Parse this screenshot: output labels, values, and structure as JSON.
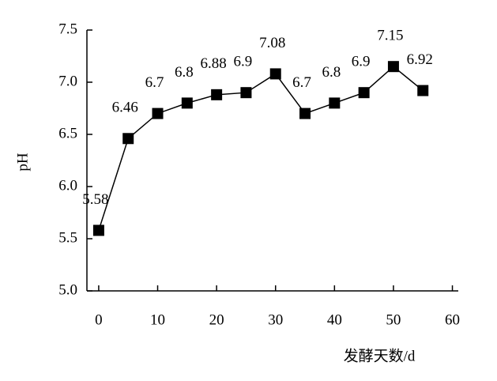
{
  "chart_data": {
    "type": "line",
    "x_label": "发酵天数/d",
    "y_label": "pH",
    "x": [
      0,
      5,
      10,
      15,
      20,
      25,
      30,
      35,
      40,
      45,
      50,
      55
    ],
    "series": [
      {
        "name": "pH",
        "color": "#000000",
        "values": [
          5.58,
          6.46,
          6.7,
          6.8,
          6.88,
          6.9,
          7.08,
          6.7,
          6.8,
          6.9,
          7.15,
          6.92
        ]
      }
    ],
    "xlim": [
      -2,
      61
    ],
    "xticks": [
      0,
      10,
      20,
      30,
      40,
      50,
      60
    ],
    "ylim": [
      5,
      7.5
    ],
    "yticks": [
      {
        "value": 5,
        "label": "5.0"
      },
      {
        "value": 5.5,
        "label": "5.5"
      },
      {
        "value": 6,
        "label": "6.0"
      },
      {
        "value": 6.5,
        "label": "6.5"
      },
      {
        "value": 7,
        "label": "7.0"
      },
      {
        "value": 7.5,
        "label": "7.5"
      }
    ],
    "grid": false
  }
}
